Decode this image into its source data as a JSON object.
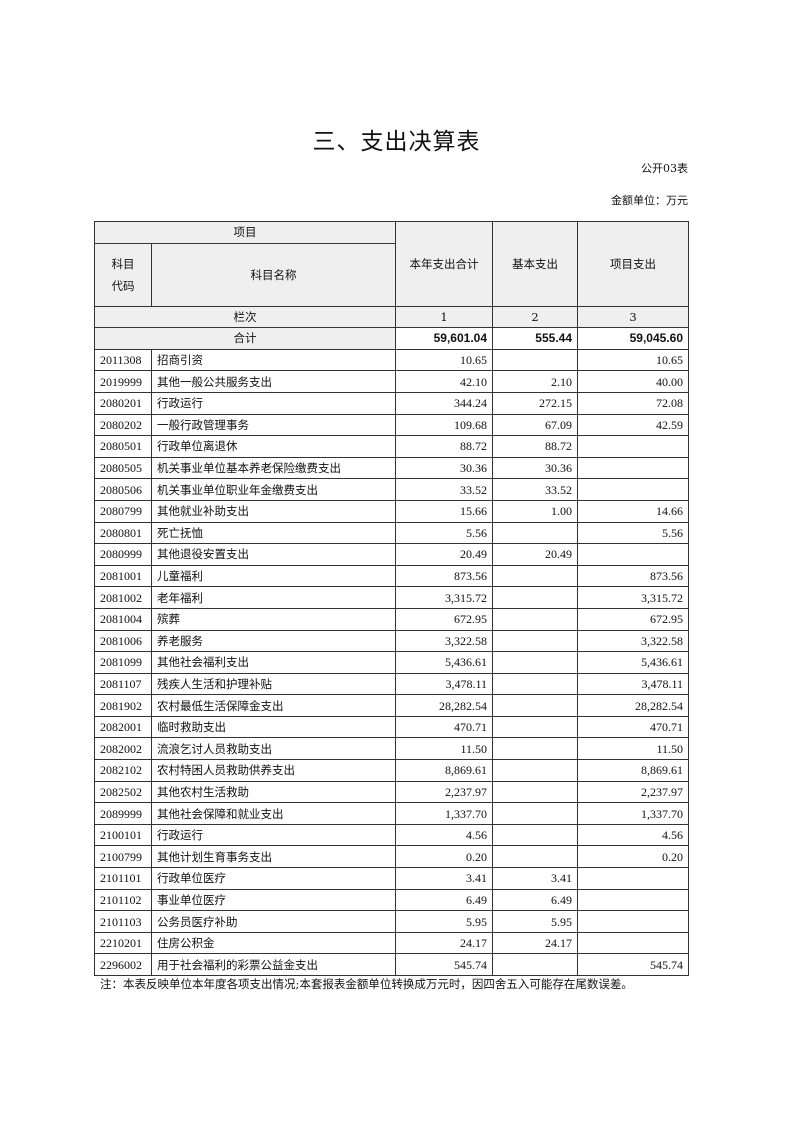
{
  "title": "三、支出决算表",
  "form_no": "公开03表",
  "unit": "金额单位：万元",
  "header": {
    "item": "项目",
    "code": "科目代码",
    "name": "科目名称",
    "total": "本年支出合计",
    "basic": "基本支出",
    "project": "项目支出",
    "column_label": "栏次",
    "col1": "1",
    "col2": "2",
    "col3": "3"
  },
  "sum_row": {
    "label": "合计",
    "total": "59,601.04",
    "basic": "555.44",
    "project": "59,045.60"
  },
  "rows": [
    {
      "code": "2011308",
      "name": "招商引资",
      "total": "10.65",
      "basic": "",
      "project": "10.65"
    },
    {
      "code": "2019999",
      "name": "其他一般公共服务支出",
      "total": "42.10",
      "basic": "2.10",
      "project": "40.00"
    },
    {
      "code": "2080201",
      "name": "行政运行",
      "total": "344.24",
      "basic": "272.15",
      "project": "72.08"
    },
    {
      "code": "2080202",
      "name": "一般行政管理事务",
      "total": "109.68",
      "basic": "67.09",
      "project": "42.59"
    },
    {
      "code": "2080501",
      "name": "行政单位离退休",
      "total": "88.72",
      "basic": "88.72",
      "project": ""
    },
    {
      "code": "2080505",
      "name": "机关事业单位基本养老保险缴费支出",
      "total": "30.36",
      "basic": "30.36",
      "project": ""
    },
    {
      "code": "2080506",
      "name": "机关事业单位职业年金缴费支出",
      "total": "33.52",
      "basic": "33.52",
      "project": ""
    },
    {
      "code": "2080799",
      "name": "其他就业补助支出",
      "total": "15.66",
      "basic": "1.00",
      "project": "14.66"
    },
    {
      "code": "2080801",
      "name": "死亡抚恤",
      "total": "5.56",
      "basic": "",
      "project": "5.56"
    },
    {
      "code": "2080999",
      "name": "其他退役安置支出",
      "total": "20.49",
      "basic": "20.49",
      "project": ""
    },
    {
      "code": "2081001",
      "name": "儿童福利",
      "total": "873.56",
      "basic": "",
      "project": "873.56"
    },
    {
      "code": "2081002",
      "name": "老年福利",
      "total": "3,315.72",
      "basic": "",
      "project": "3,315.72"
    },
    {
      "code": "2081004",
      "name": "殡葬",
      "total": "672.95",
      "basic": "",
      "project": "672.95"
    },
    {
      "code": "2081006",
      "name": "养老服务",
      "total": "3,322.58",
      "basic": "",
      "project": "3,322.58"
    },
    {
      "code": "2081099",
      "name": "其他社会福利支出",
      "total": "5,436.61",
      "basic": "",
      "project": "5,436.61"
    },
    {
      "code": "2081107",
      "name": "残疾人生活和护理补贴",
      "total": "3,478.11",
      "basic": "",
      "project": "3,478.11"
    },
    {
      "code": "2081902",
      "name": "农村最低生活保障金支出",
      "total": "28,282.54",
      "basic": "",
      "project": "28,282.54"
    },
    {
      "code": "2082001",
      "name": "临时救助支出",
      "total": "470.71",
      "basic": "",
      "project": "470.71"
    },
    {
      "code": "2082002",
      "name": "流浪乞讨人员救助支出",
      "total": "11.50",
      "basic": "",
      "project": "11.50"
    },
    {
      "code": "2082102",
      "name": "农村特困人员救助供养支出",
      "total": "8,869.61",
      "basic": "",
      "project": "8,869.61"
    },
    {
      "code": "2082502",
      "name": "其他农村生活救助",
      "total": "2,237.97",
      "basic": "",
      "project": "2,237.97"
    },
    {
      "code": "2089999",
      "name": "其他社会保障和就业支出",
      "total": "1,337.70",
      "basic": "",
      "project": "1,337.70"
    },
    {
      "code": "2100101",
      "name": "行政运行",
      "total": "4.56",
      "basic": "",
      "project": "4.56"
    },
    {
      "code": "2100799",
      "name": "其他计划生育事务支出",
      "total": "0.20",
      "basic": "",
      "project": "0.20"
    },
    {
      "code": "2101101",
      "name": "行政单位医疗",
      "total": "3.41",
      "basic": "3.41",
      "project": ""
    },
    {
      "code": "2101102",
      "name": "事业单位医疗",
      "total": "6.49",
      "basic": "6.49",
      "project": ""
    },
    {
      "code": "2101103",
      "name": "公务员医疗补助",
      "total": "5.95",
      "basic": "5.95",
      "project": ""
    },
    {
      "code": "2210201",
      "name": "住房公积金",
      "total": "24.17",
      "basic": "24.17",
      "project": ""
    },
    {
      "code": "2296002",
      "name": "用于社会福利的彩票公益金支出",
      "total": "545.74",
      "basic": "",
      "project": "545.74"
    }
  ],
  "note": "注：本表反映单位本年度各项支出情况;本套报表金额单位转换成万元时，因四舍五入可能存在尾数误差。"
}
